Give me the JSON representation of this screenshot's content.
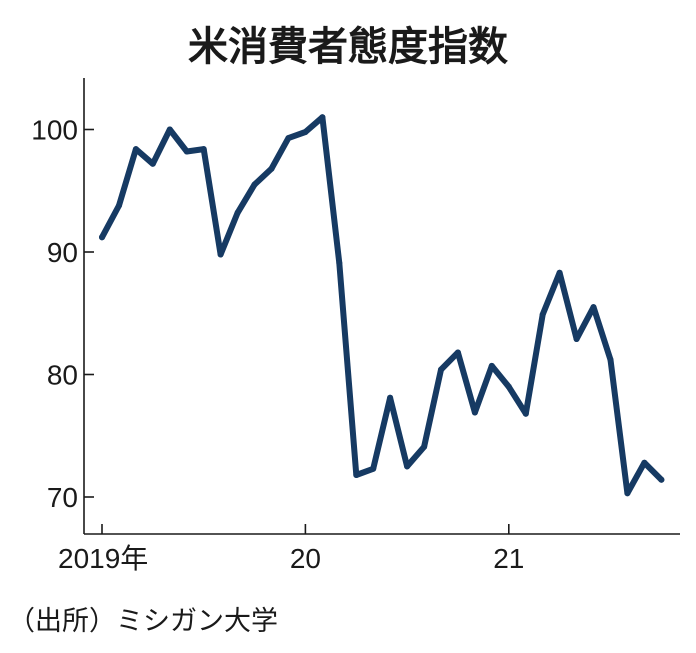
{
  "chart_data": {
    "type": "line",
    "title": "米消費者態度指数",
    "source": "（出所）ミシガン大学",
    "xlabel": "",
    "ylabel": "",
    "ylim": [
      67,
      104
    ],
    "yticks": [
      70,
      80,
      90,
      100
    ],
    "xticks": [
      {
        "label": "2019年",
        "month_index": 0
      },
      {
        "label": "20",
        "month_index": 12
      },
      {
        "label": "21",
        "month_index": 24
      }
    ],
    "colors": {
      "line": "#163a63",
      "axis": "#1a1a1a"
    },
    "grid": false,
    "series": [
      {
        "x": [
          "2019-01",
          "2019-02",
          "2019-03",
          "2019-04",
          "2019-05",
          "2019-06",
          "2019-07",
          "2019-08",
          "2019-09",
          "2019-10",
          "2019-11",
          "2019-12",
          "2020-01",
          "2020-02",
          "2020-03",
          "2020-04",
          "2020-05",
          "2020-06",
          "2020-07",
          "2020-08",
          "2020-09",
          "2020-10",
          "2020-11",
          "2020-12",
          "2021-01",
          "2021-02",
          "2021-03",
          "2021-04",
          "2021-05",
          "2021-06",
          "2021-07",
          "2021-08",
          "2021-09",
          "2021-10"
        ],
        "values": [
          91.2,
          93.8,
          98.4,
          97.2,
          100.0,
          98.2,
          98.4,
          89.8,
          93.2,
          95.5,
          96.8,
          99.3,
          99.8,
          101.0,
          89.1,
          71.8,
          72.3,
          78.1,
          72.5,
          74.1,
          80.4,
          81.8,
          76.9,
          80.7,
          79.0,
          76.8,
          84.9,
          88.3,
          82.9,
          85.5,
          81.2,
          70.3,
          72.8,
          71.4
        ]
      }
    ]
  }
}
